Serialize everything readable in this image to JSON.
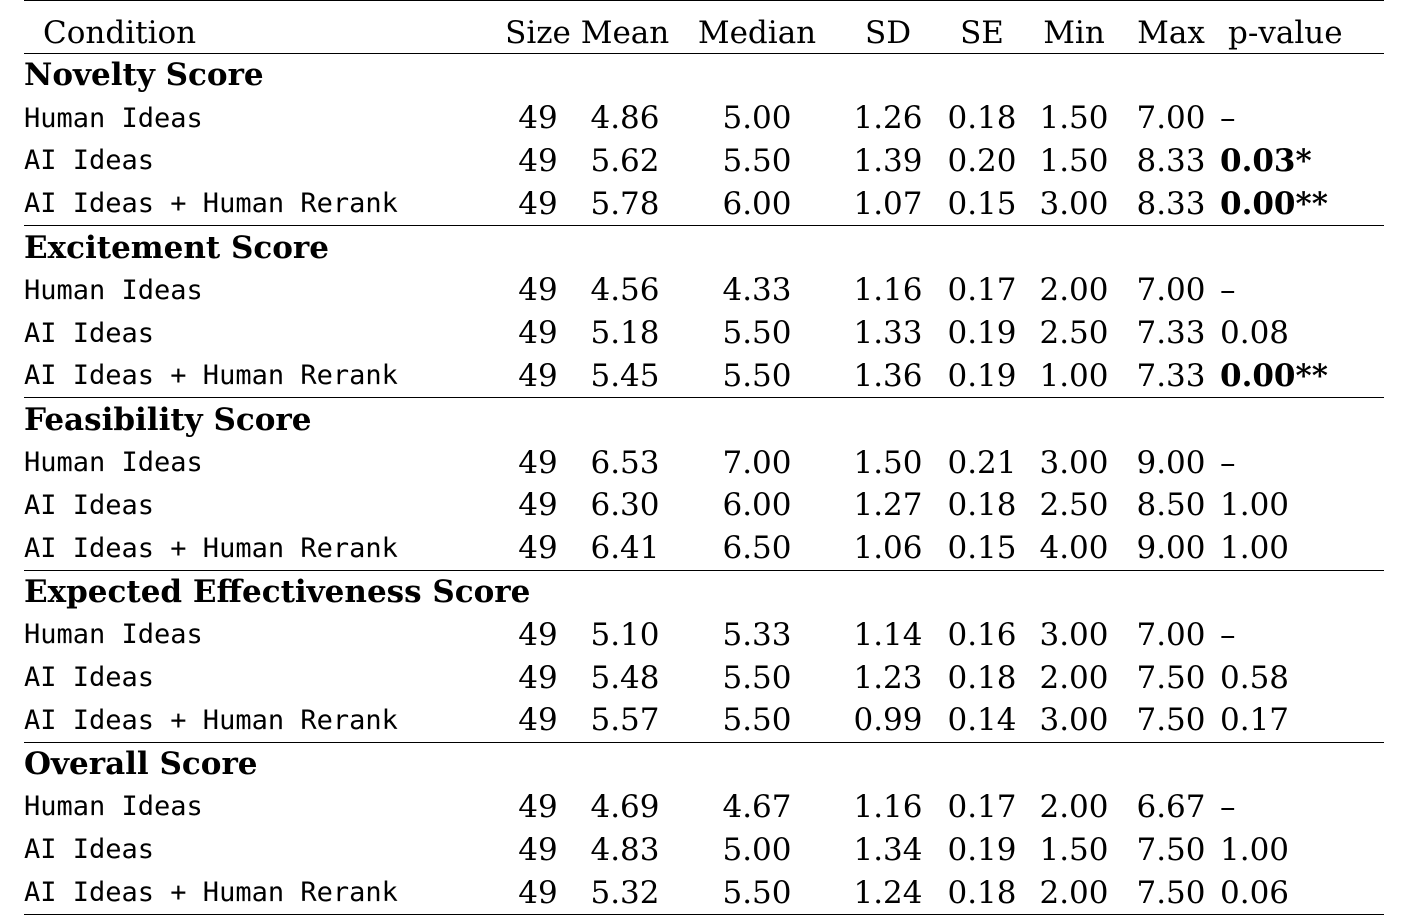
{
  "columns": [
    "Condition",
    "Size",
    "Mean",
    "Median",
    "SD",
    "SE",
    "Min",
    "Max",
    "p-value"
  ],
  "sections": [
    {
      "title": "Novelty Score",
      "rows": [
        {
          "condition": "Human Ideas",
          "values": [
            "49",
            "4.86",
            "5.00",
            "1.26",
            "0.18",
            "1.50",
            "7.00"
          ],
          "p": "–",
          "p_bold": false
        },
        {
          "condition": "AI Ideas",
          "values": [
            "49",
            "5.62",
            "5.50",
            "1.39",
            "0.20",
            "1.50",
            "8.33"
          ],
          "p": "0.03*",
          "p_bold": true
        },
        {
          "condition": "AI Ideas + Human Rerank",
          "values": [
            "49",
            "5.78",
            "6.00",
            "1.07",
            "0.15",
            "3.00",
            "8.33"
          ],
          "p": "0.00**",
          "p_bold": true
        }
      ]
    },
    {
      "title": "Excitement Score",
      "rows": [
        {
          "condition": "Human Ideas",
          "values": [
            "49",
            "4.56",
            "4.33",
            "1.16",
            "0.17",
            "2.00",
            "7.00"
          ],
          "p": "–",
          "p_bold": false
        },
        {
          "condition": "AI Ideas",
          "values": [
            "49",
            "5.18",
            "5.50",
            "1.33",
            "0.19",
            "2.50",
            "7.33"
          ],
          "p": "0.08",
          "p_bold": false
        },
        {
          "condition": "AI Ideas + Human Rerank",
          "values": [
            "49",
            "5.45",
            "5.50",
            "1.36",
            "0.19",
            "1.00",
            "7.33"
          ],
          "p": "0.00**",
          "p_bold": true
        }
      ]
    },
    {
      "title": "Feasibility Score",
      "rows": [
        {
          "condition": "Human Ideas",
          "values": [
            "49",
            "6.53",
            "7.00",
            "1.50",
            "0.21",
            "3.00",
            "9.00"
          ],
          "p": "–",
          "p_bold": false
        },
        {
          "condition": "AI Ideas",
          "values": [
            "49",
            "6.30",
            "6.00",
            "1.27",
            "0.18",
            "2.50",
            "8.50"
          ],
          "p": "1.00",
          "p_bold": false
        },
        {
          "condition": "AI Ideas + Human Rerank",
          "values": [
            "49",
            "6.41",
            "6.50",
            "1.06",
            "0.15",
            "4.00",
            "9.00"
          ],
          "p": "1.00",
          "p_bold": false
        }
      ]
    },
    {
      "title": "Expected Effectiveness Score",
      "rows": [
        {
          "condition": "Human Ideas",
          "values": [
            "49",
            "5.10",
            "5.33",
            "1.14",
            "0.16",
            "3.00",
            "7.00"
          ],
          "p": "–",
          "p_bold": false
        },
        {
          "condition": "AI Ideas",
          "values": [
            "49",
            "5.48",
            "5.50",
            "1.23",
            "0.18",
            "2.00",
            "7.50"
          ],
          "p": "0.58",
          "p_bold": false
        },
        {
          "condition": "AI Ideas + Human Rerank",
          "values": [
            "49",
            "5.57",
            "5.50",
            "0.99",
            "0.14",
            "3.00",
            "7.50"
          ],
          "p": "0.17",
          "p_bold": false
        }
      ]
    },
    {
      "title": "Overall Score",
      "rows": [
        {
          "condition": "Human Ideas",
          "values": [
            "49",
            "4.69",
            "4.67",
            "1.16",
            "0.17",
            "2.00",
            "6.67"
          ],
          "p": "–",
          "p_bold": false
        },
        {
          "condition": "AI Ideas",
          "values": [
            "49",
            "4.83",
            "5.00",
            "1.34",
            "0.19",
            "1.50",
            "7.50"
          ],
          "p": "1.00",
          "p_bold": false
        },
        {
          "condition": "AI Ideas + Human Rerank",
          "values": [
            "49",
            "5.32",
            "5.50",
            "1.24",
            "0.18",
            "2.00",
            "7.50"
          ],
          "p": "0.06",
          "p_bold": false
        }
      ]
    }
  ]
}
